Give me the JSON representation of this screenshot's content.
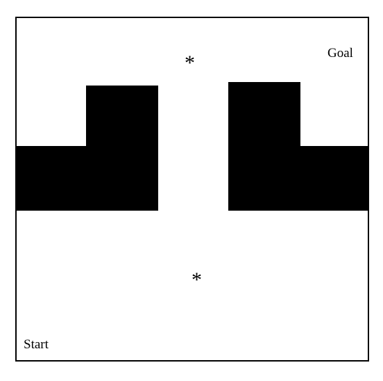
{
  "labels": {
    "goal": "Goal",
    "start": "Start"
  },
  "markers": {
    "waypoint_top": "*",
    "waypoint_bottom": "*"
  },
  "colors": {
    "obstacle": "#000000",
    "background": "#ffffff",
    "border": "#000000"
  }
}
